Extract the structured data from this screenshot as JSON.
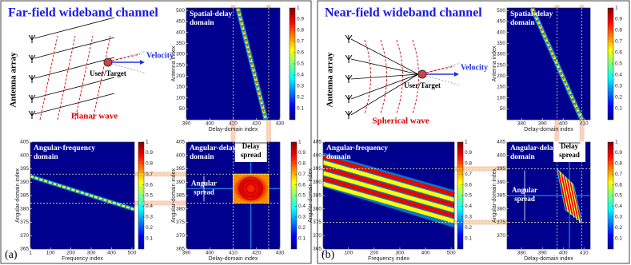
{
  "panels": [
    {
      "title": "Far-field wideband channel",
      "label": "(a)",
      "antenna": "Antenna array",
      "user": "User/Target",
      "velocity": "Velocity",
      "wave": "Planar wave",
      "delay_spread": [
        "Delay",
        "spread"
      ],
      "angular_spread": [
        "Angular",
        "spread"
      ],
      "plots": [
        {
          "title": [
            "Spatial-delay",
            "domain"
          ],
          "xlabel": "Delay-domain index",
          "ylabel": "Antenna index",
          "xlim": [
            390,
            430
          ],
          "xticks": [
            390,
            400,
            410,
            420,
            430
          ],
          "ylim": [
            0,
            512
          ],
          "yticks": [
            50,
            100,
            150,
            200,
            250,
            300,
            350,
            400,
            450,
            500
          ],
          "clim": [
            0,
            1
          ],
          "cticks": [
            0.1,
            0.2,
            0.3,
            0.4,
            0.5,
            0.6,
            0.7,
            0.8,
            0.9,
            1
          ]
        },
        {
          "title": [
            "Angular-frequency",
            "domain"
          ],
          "xlabel": "Frequency index",
          "ylabel": "Angular-domain index",
          "xlim": [
            1,
            512
          ],
          "xticks": [
            1,
            100,
            200,
            300,
            400,
            500
          ],
          "ylim": [
            365,
            405
          ],
          "yticks": [
            365,
            370,
            375,
            380,
            385,
            390,
            395,
            400,
            405
          ],
          "clim": [
            0,
            1
          ],
          "cticks": [
            0.1,
            0.2,
            0.3,
            0.4,
            0.5,
            0.6,
            0.7,
            0.8,
            0.9,
            1
          ]
        },
        {
          "title": [
            "Angular-delay",
            "domain"
          ],
          "xlabel": "Delay-domain index",
          "ylabel": "Angular-domain index",
          "xlim": [
            390,
            430
          ],
          "xticks": [
            390,
            400,
            410,
            420,
            430
          ],
          "ylim": [
            365,
            405
          ],
          "yticks": [
            365,
            370,
            375,
            380,
            385,
            390,
            395,
            400,
            405
          ],
          "clim": [
            0,
            1
          ],
          "cticks": [
            0.1,
            0.2,
            0.3,
            0.4,
            0.5,
            0.6,
            0.7,
            0.8,
            0.9,
            1
          ]
        }
      ]
    },
    {
      "title": "Near-field wideband channel",
      "label": "(b)",
      "antenna": "Antenna array",
      "user": "User/Target",
      "velocity": "Velocity",
      "wave": "Spherical wave",
      "delay_spread": [
        "Delay",
        "spread"
      ],
      "angular_spread": [
        "Angular",
        "spread"
      ],
      "plots": [
        {
          "title": [
            "Spatial-delay",
            "domain"
          ],
          "xlabel": "Delay-domain index",
          "ylabel": "Antenna index",
          "xlim": [
            373,
            413
          ],
          "xticks": [
            380,
            390,
            400,
            410
          ],
          "ylim": [
            0,
            512
          ],
          "yticks": [
            50,
            100,
            150,
            200,
            250,
            300,
            350,
            400,
            450,
            500
          ],
          "clim": [
            0,
            1
          ],
          "cticks": [
            0.1,
            0.2,
            0.3,
            0.4,
            0.5,
            0.6,
            0.7,
            0.8,
            0.9,
            1
          ]
        },
        {
          "title": [
            "Angular-frequency",
            "domain"
          ],
          "xlabel": "Frequency index",
          "ylabel": "Angular-domain index",
          "xlim": [
            1,
            512
          ],
          "xticks": [
            1,
            100,
            200,
            300,
            400,
            500
          ],
          "ylim": [
            365,
            405
          ],
          "yticks": [
            365,
            370,
            375,
            380,
            385,
            390,
            395,
            400,
            405
          ],
          "clim": [
            0,
            1
          ],
          "cticks": [
            0.1,
            0.2,
            0.3,
            0.4,
            0.5,
            0.6,
            0.7,
            0.8,
            0.9,
            1
          ]
        },
        {
          "title": [
            "Angular-delay",
            "domain"
          ],
          "xlabel": "Delay-domain index",
          "ylabel": "Angular-domain index",
          "xlim": [
            373,
            413
          ],
          "xticks": [
            380,
            390,
            400,
            410
          ],
          "ylim": [
            365,
            405
          ],
          "yticks": [
            370,
            375,
            380,
            385,
            390,
            395,
            400,
            405
          ],
          "clim": [
            0,
            1
          ],
          "cticks": [
            0.1,
            0.2,
            0.3,
            0.4,
            0.5,
            0.6,
            0.7,
            0.8,
            0.9,
            1
          ]
        }
      ]
    }
  ]
}
